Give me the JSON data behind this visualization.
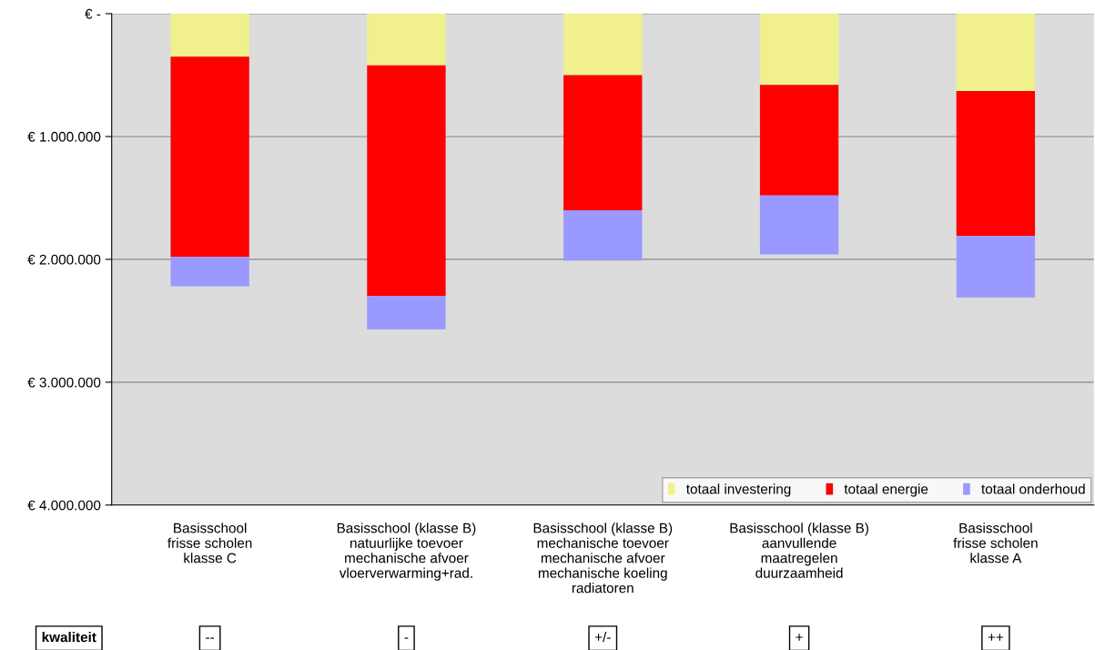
{
  "chart_data": {
    "type": "bar",
    "stacked": true,
    "categories": [
      "Basisschool\nfrisse scholen\nklasse C",
      "Basisschool (klasse B)\nnatuurlijke toevoer\nmechanische afvoer\nvloerverwarming+rad.",
      "Basisschool (klasse B)\nmechanische toevoer\nmechanische afvoer\nmechanische koeling\nradiatoren",
      "Basisschool (klasse B)\naanvullende\nmaatregelen\nduurzaamheid",
      "Basisschool\nfrisse scholen\nklasse A"
    ],
    "series": [
      {
        "name": "totaal investering",
        "color": "#f0f08c",
        "values": [
          350000,
          420000,
          500000,
          580000,
          630000
        ]
      },
      {
        "name": "totaal energie",
        "color": "#ff0000",
        "values": [
          1630000,
          1880000,
          1100000,
          900000,
          1180000
        ]
      },
      {
        "name": "totaal onderhoud",
        "color": "#9999ff",
        "values": [
          240000,
          270000,
          410000,
          480000,
          500000
        ]
      }
    ],
    "ylim": [
      4000000,
      0
    ],
    "yticks": [
      {
        "value": 0,
        "label": "€ -"
      },
      {
        "value": 1000000,
        "label": "€ 1.000.000"
      },
      {
        "value": 2000000,
        "label": "€ 2.000.000"
      },
      {
        "value": 3000000,
        "label": "€ 3.000.000"
      },
      {
        "value": 4000000,
        "label": "€ 4.000.000"
      }
    ],
    "grid": "y",
    "legend": "bottom right",
    "annotations": [
      "kwaliteit",
      "--",
      "-",
      "+/-",
      "+",
      "++"
    ]
  }
}
